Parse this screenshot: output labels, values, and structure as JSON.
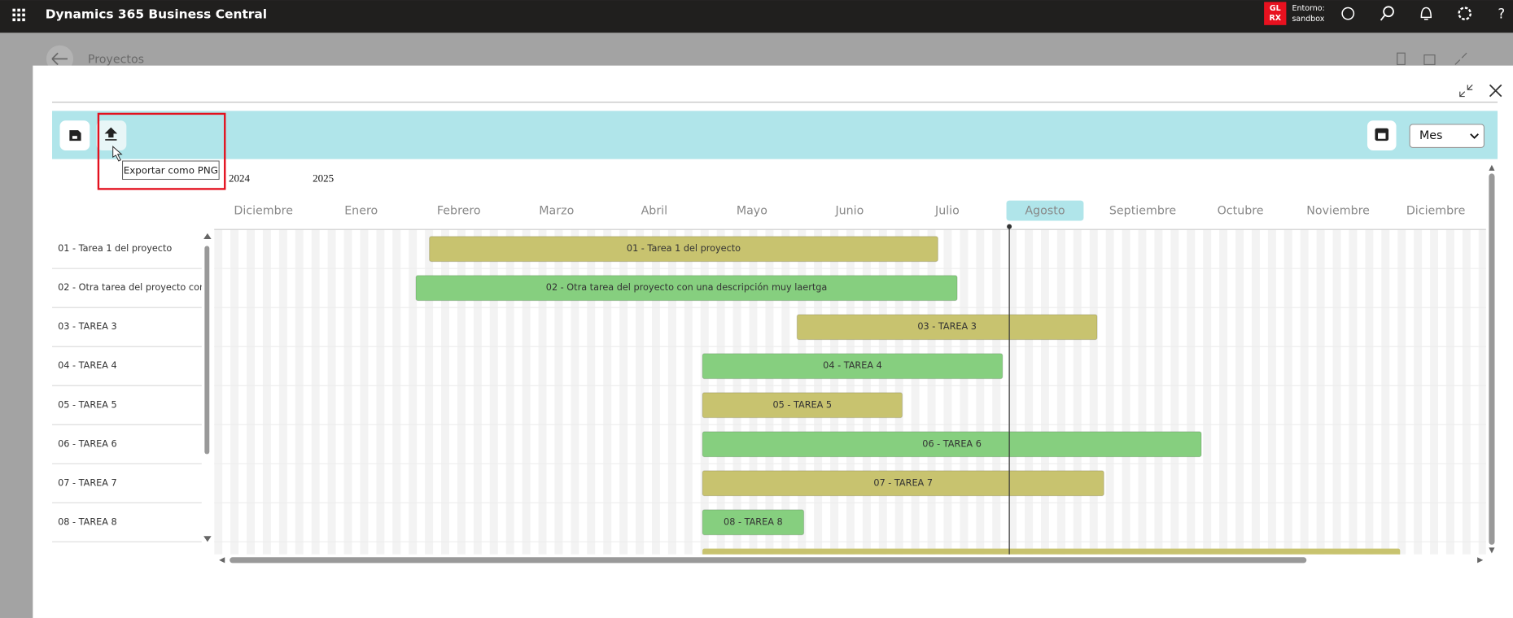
{
  "app_bar": {
    "title": "Dynamics 365 Business Central",
    "badge": [
      "GL",
      "RX"
    ],
    "environment": [
      "Entorno:",
      "sandbox"
    ]
  },
  "background_page": {
    "title": "Proyectos"
  },
  "toolbar": {
    "tooltip": "Exportar como PNG",
    "view_select": "Mes"
  },
  "timeline": {
    "years": [
      "2024",
      "2025"
    ],
    "months": [
      "Diciembre",
      "Enero",
      "Febrero",
      "Marzo",
      "Abril",
      "Mayo",
      "Junio",
      "Julio",
      "Agosto",
      "Septiembre",
      "Octubre",
      "Noviembre",
      "Diciembre"
    ]
  },
  "tasks": [
    {
      "name": "01 - Tarea 1 del proyecto",
      "color": "#c8c36f"
    },
    {
      "name": "02 - Otra tarea del proyecto con una descripción muy laertga",
      "color": "#86cf7f"
    },
    {
      "name": "03 - TAREA 3",
      "color": "#c8c36f"
    },
    {
      "name": "04 - TAREA 4",
      "color": "#86cf7f"
    },
    {
      "name": "05 - TAREA 5",
      "color": "#c8c36f"
    },
    {
      "name": "06 - TAREA 6",
      "color": "#86cf7f"
    },
    {
      "name": "07 - TAREA 7",
      "color": "#c8c36f"
    },
    {
      "name": "08 - TAREA 8",
      "color": "#86cf7f"
    }
  ]
}
